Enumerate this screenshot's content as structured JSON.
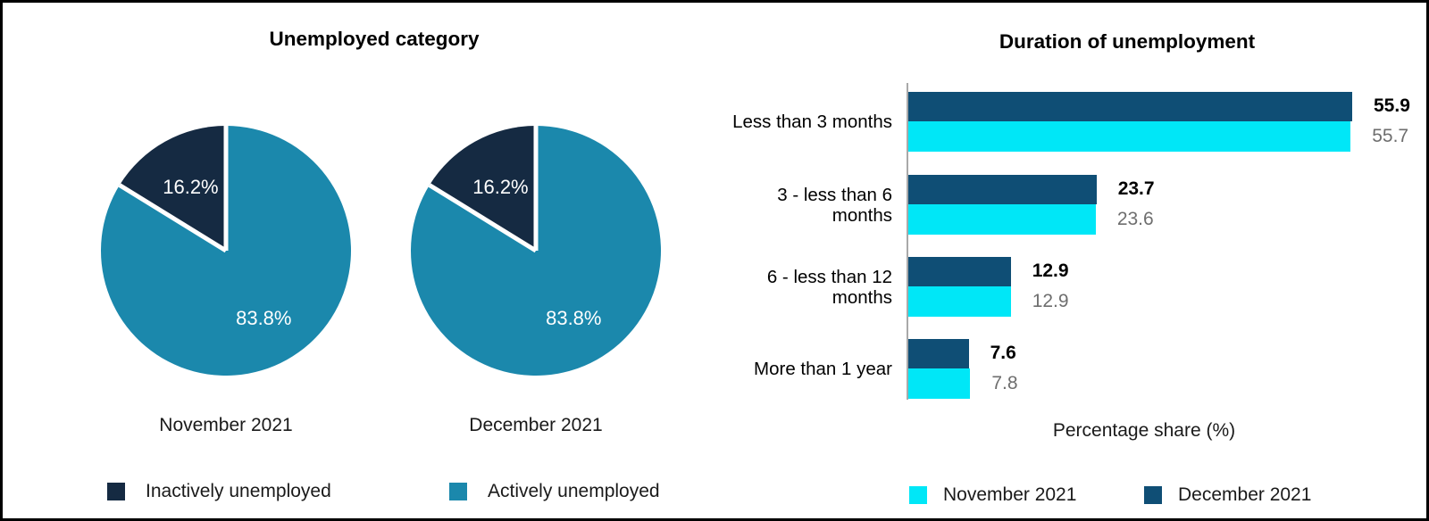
{
  "chart_data": [
    {
      "type": "pie",
      "title": "Unemployed category",
      "charts": [
        {
          "caption": "November 2021",
          "slices": [
            {
              "name": "Inactively unemployed",
              "value": 16.2,
              "display": "16.2%"
            },
            {
              "name": "Actively unemployed",
              "value": 83.8,
              "display": "83.8%"
            }
          ]
        },
        {
          "caption": "December 2021",
          "slices": [
            {
              "name": "Inactively unemployed",
              "value": 16.2,
              "display": "16.2%"
            },
            {
              "name": "Actively unemployed",
              "value": 83.8,
              "display": "83.8%"
            }
          ]
        }
      ],
      "legend": [
        {
          "label": "Inactively unemployed",
          "color": "#152A42"
        },
        {
          "label": "Actively unemployed",
          "color": "#1B88AC"
        }
      ],
      "colors": {
        "inactive": "#152A42",
        "active": "#1B88AC",
        "slice_label": "#ffffff",
        "separator": "#ffffff"
      }
    },
    {
      "type": "bar",
      "orientation": "horizontal",
      "title": "Duration of unemployment",
      "categories": [
        "Less than 3 months",
        "3 - less than 6 months",
        "6 - less than 12 months",
        "More than 1 year"
      ],
      "category_lines": [
        [
          "Less than 3 months"
        ],
        [
          "3 - less than 6",
          "months"
        ],
        [
          "6 - less than 12",
          "months"
        ],
        [
          "More than 1 year"
        ]
      ],
      "series": [
        {
          "name": "December 2021",
          "color": "#0F4E75",
          "values": [
            55.9,
            23.7,
            12.9,
            7.6
          ],
          "value_labels": [
            "55.9",
            "23.7",
            "12.9",
            "7.6"
          ],
          "label_style": "bold"
        },
        {
          "name": "November 2021",
          "color": "#00E7F7",
          "values": [
            55.7,
            23.6,
            12.9,
            7.8
          ],
          "value_labels": [
            "55.7",
            "23.6",
            "12.9",
            "7.8"
          ],
          "label_style": "gray"
        }
      ],
      "xlabel": "Percentage share (%)",
      "xlim": [
        0,
        60
      ],
      "grid": false,
      "legend_position": "bottom",
      "legend": [
        {
          "label": "November 2021",
          "color": "#00E7F7"
        },
        {
          "label": "December 2021",
          "color": "#0F4E75"
        }
      ],
      "axis_color": "#a9a9a9"
    }
  ]
}
